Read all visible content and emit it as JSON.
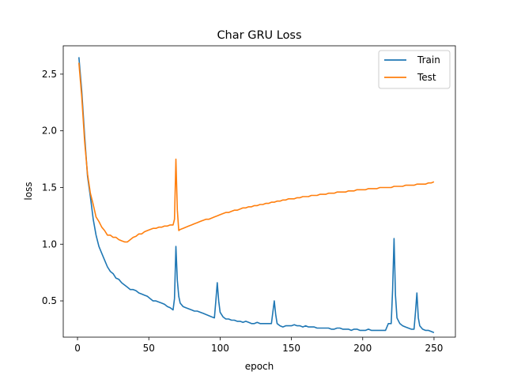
{
  "chart_data": {
    "type": "line",
    "title": "Char GRU Loss",
    "xlabel": "epoch",
    "ylabel": "loss",
    "xlim": [
      -10,
      265
    ],
    "ylim": [
      0.18,
      2.75
    ],
    "xticks": [
      0,
      50,
      100,
      150,
      200,
      250
    ],
    "yticks": [
      0.5,
      1.0,
      1.5,
      2.0,
      2.5
    ],
    "xtick_labels": [
      "0",
      "50",
      "100",
      "150",
      "200",
      "250"
    ],
    "ytick_labels": [
      "0.5",
      "1.0",
      "1.5",
      "2.0",
      "2.5"
    ],
    "legend_position": "top-right",
    "grid": false,
    "series": [
      {
        "name": "Train",
        "color": "#1f77b4",
        "points": [
          [
            1,
            2.65
          ],
          [
            3,
            2.35
          ],
          [
            5,
            1.95
          ],
          [
            7,
            1.6
          ],
          [
            9,
            1.42
          ],
          [
            11,
            1.22
          ],
          [
            13,
            1.08
          ],
          [
            15,
            0.98
          ],
          [
            17,
            0.92
          ],
          [
            19,
            0.86
          ],
          [
            21,
            0.8
          ],
          [
            23,
            0.76
          ],
          [
            25,
            0.74
          ],
          [
            27,
            0.7
          ],
          [
            29,
            0.69
          ],
          [
            31,
            0.66
          ],
          [
            33,
            0.64
          ],
          [
            35,
            0.62
          ],
          [
            37,
            0.6
          ],
          [
            39,
            0.6
          ],
          [
            41,
            0.59
          ],
          [
            43,
            0.57
          ],
          [
            45,
            0.56
          ],
          [
            47,
            0.55
          ],
          [
            49,
            0.54
          ],
          [
            51,
            0.52
          ],
          [
            53,
            0.5
          ],
          [
            55,
            0.5
          ],
          [
            57,
            0.49
          ],
          [
            59,
            0.48
          ],
          [
            61,
            0.47
          ],
          [
            63,
            0.45
          ],
          [
            65,
            0.44
          ],
          [
            67,
            0.42
          ],
          [
            68,
            0.52
          ],
          [
            69,
            0.98
          ],
          [
            70,
            0.68
          ],
          [
            71,
            0.54
          ],
          [
            72,
            0.48
          ],
          [
            74,
            0.45
          ],
          [
            76,
            0.44
          ],
          [
            78,
            0.43
          ],
          [
            80,
            0.42
          ],
          [
            82,
            0.41
          ],
          [
            84,
            0.41
          ],
          [
            86,
            0.4
          ],
          [
            88,
            0.39
          ],
          [
            90,
            0.38
          ],
          [
            92,
            0.37
          ],
          [
            94,
            0.36
          ],
          [
            96,
            0.35
          ],
          [
            97,
            0.5
          ],
          [
            98,
            0.66
          ],
          [
            99,
            0.5
          ],
          [
            100,
            0.4
          ],
          [
            102,
            0.36
          ],
          [
            104,
            0.34
          ],
          [
            106,
            0.34
          ],
          [
            108,
            0.33
          ],
          [
            110,
            0.33
          ],
          [
            112,
            0.32
          ],
          [
            114,
            0.32
          ],
          [
            116,
            0.31
          ],
          [
            118,
            0.32
          ],
          [
            120,
            0.31
          ],
          [
            122,
            0.3
          ],
          [
            124,
            0.3
          ],
          [
            126,
            0.31
          ],
          [
            128,
            0.3
          ],
          [
            130,
            0.3
          ],
          [
            132,
            0.3
          ],
          [
            134,
            0.3
          ],
          [
            136,
            0.3
          ],
          [
            137,
            0.4
          ],
          [
            138,
            0.5
          ],
          [
            139,
            0.38
          ],
          [
            140,
            0.3
          ],
          [
            142,
            0.28
          ],
          [
            144,
            0.27
          ],
          [
            146,
            0.28
          ],
          [
            148,
            0.28
          ],
          [
            150,
            0.28
          ],
          [
            152,
            0.29
          ],
          [
            154,
            0.28
          ],
          [
            156,
            0.28
          ],
          [
            158,
            0.27
          ],
          [
            160,
            0.28
          ],
          [
            162,
            0.27
          ],
          [
            164,
            0.27
          ],
          [
            166,
            0.27
          ],
          [
            168,
            0.26
          ],
          [
            170,
            0.26
          ],
          [
            172,
            0.26
          ],
          [
            174,
            0.26
          ],
          [
            176,
            0.26
          ],
          [
            178,
            0.25
          ],
          [
            180,
            0.25
          ],
          [
            182,
            0.26
          ],
          [
            184,
            0.26
          ],
          [
            186,
            0.25
          ],
          [
            188,
            0.25
          ],
          [
            190,
            0.25
          ],
          [
            192,
            0.24
          ],
          [
            194,
            0.25
          ],
          [
            196,
            0.25
          ],
          [
            198,
            0.24
          ],
          [
            200,
            0.24
          ],
          [
            202,
            0.24
          ],
          [
            204,
            0.25
          ],
          [
            206,
            0.24
          ],
          [
            208,
            0.24
          ],
          [
            210,
            0.24
          ],
          [
            212,
            0.24
          ],
          [
            214,
            0.24
          ],
          [
            216,
            0.24
          ],
          [
            218,
            0.3
          ],
          [
            220,
            0.3
          ],
          [
            221,
            0.6
          ],
          [
            222,
            1.05
          ],
          [
            223,
            0.55
          ],
          [
            224,
            0.35
          ],
          [
            226,
            0.3
          ],
          [
            228,
            0.28
          ],
          [
            230,
            0.27
          ],
          [
            232,
            0.26
          ],
          [
            234,
            0.25
          ],
          [
            236,
            0.25
          ],
          [
            237,
            0.4
          ],
          [
            238,
            0.57
          ],
          [
            239,
            0.35
          ],
          [
            240,
            0.28
          ],
          [
            242,
            0.25
          ],
          [
            244,
            0.24
          ],
          [
            246,
            0.24
          ],
          [
            248,
            0.23
          ],
          [
            250,
            0.22
          ]
        ]
      },
      {
        "name": "Test",
        "color": "#ff7f0e",
        "points": [
          [
            1,
            2.6
          ],
          [
            3,
            2.3
          ],
          [
            5,
            1.9
          ],
          [
            7,
            1.62
          ],
          [
            9,
            1.45
          ],
          [
            11,
            1.35
          ],
          [
            13,
            1.24
          ],
          [
            15,
            1.2
          ],
          [
            17,
            1.15
          ],
          [
            19,
            1.12
          ],
          [
            21,
            1.08
          ],
          [
            23,
            1.08
          ],
          [
            25,
            1.06
          ],
          [
            27,
            1.06
          ],
          [
            29,
            1.04
          ],
          [
            31,
            1.03
          ],
          [
            33,
            1.02
          ],
          [
            35,
            1.02
          ],
          [
            37,
            1.04
          ],
          [
            39,
            1.06
          ],
          [
            41,
            1.07
          ],
          [
            43,
            1.09
          ],
          [
            45,
            1.09
          ],
          [
            47,
            1.11
          ],
          [
            49,
            1.12
          ],
          [
            51,
            1.13
          ],
          [
            53,
            1.14
          ],
          [
            55,
            1.14
          ],
          [
            57,
            1.15
          ],
          [
            59,
            1.15
          ],
          [
            61,
            1.16
          ],
          [
            63,
            1.16
          ],
          [
            65,
            1.17
          ],
          [
            67,
            1.17
          ],
          [
            68,
            1.22
          ],
          [
            69,
            1.75
          ],
          [
            70,
            1.3
          ],
          [
            71,
            1.12
          ],
          [
            72,
            1.13
          ],
          [
            74,
            1.14
          ],
          [
            76,
            1.15
          ],
          [
            78,
            1.16
          ],
          [
            80,
            1.17
          ],
          [
            82,
            1.18
          ],
          [
            84,
            1.19
          ],
          [
            86,
            1.2
          ],
          [
            88,
            1.21
          ],
          [
            90,
            1.22
          ],
          [
            92,
            1.22
          ],
          [
            94,
            1.23
          ],
          [
            96,
            1.24
          ],
          [
            98,
            1.25
          ],
          [
            100,
            1.26
          ],
          [
            102,
            1.27
          ],
          [
            104,
            1.28
          ],
          [
            106,
            1.28
          ],
          [
            108,
            1.29
          ],
          [
            110,
            1.3
          ],
          [
            112,
            1.3
          ],
          [
            114,
            1.31
          ],
          [
            116,
            1.32
          ],
          [
            118,
            1.32
          ],
          [
            120,
            1.33
          ],
          [
            122,
            1.33
          ],
          [
            124,
            1.34
          ],
          [
            126,
            1.34
          ],
          [
            128,
            1.35
          ],
          [
            130,
            1.35
          ],
          [
            132,
            1.36
          ],
          [
            134,
            1.36
          ],
          [
            136,
            1.37
          ],
          [
            138,
            1.37
          ],
          [
            140,
            1.38
          ],
          [
            142,
            1.38
          ],
          [
            144,
            1.39
          ],
          [
            146,
            1.39
          ],
          [
            148,
            1.4
          ],
          [
            150,
            1.4
          ],
          [
            152,
            1.4
          ],
          [
            154,
            1.41
          ],
          [
            156,
            1.41
          ],
          [
            158,
            1.42
          ],
          [
            160,
            1.42
          ],
          [
            162,
            1.42
          ],
          [
            164,
            1.43
          ],
          [
            166,
            1.43
          ],
          [
            168,
            1.43
          ],
          [
            170,
            1.44
          ],
          [
            172,
            1.44
          ],
          [
            174,
            1.44
          ],
          [
            176,
            1.45
          ],
          [
            178,
            1.45
          ],
          [
            180,
            1.45
          ],
          [
            182,
            1.46
          ],
          [
            184,
            1.46
          ],
          [
            186,
            1.46
          ],
          [
            188,
            1.46
          ],
          [
            190,
            1.47
          ],
          [
            192,
            1.47
          ],
          [
            194,
            1.47
          ],
          [
            196,
            1.48
          ],
          [
            198,
            1.48
          ],
          [
            200,
            1.48
          ],
          [
            202,
            1.48
          ],
          [
            204,
            1.49
          ],
          [
            206,
            1.49
          ],
          [
            208,
            1.49
          ],
          [
            210,
            1.49
          ],
          [
            212,
            1.5
          ],
          [
            214,
            1.5
          ],
          [
            216,
            1.5
          ],
          [
            218,
            1.5
          ],
          [
            220,
            1.5
          ],
          [
            222,
            1.51
          ],
          [
            224,
            1.51
          ],
          [
            226,
            1.51
          ],
          [
            228,
            1.51
          ],
          [
            230,
            1.52
          ],
          [
            232,
            1.52
          ],
          [
            234,
            1.52
          ],
          [
            236,
            1.52
          ],
          [
            238,
            1.53
          ],
          [
            240,
            1.53
          ],
          [
            242,
            1.53
          ],
          [
            244,
            1.53
          ],
          [
            246,
            1.54
          ],
          [
            248,
            1.54
          ],
          [
            250,
            1.55
          ]
        ]
      }
    ]
  }
}
